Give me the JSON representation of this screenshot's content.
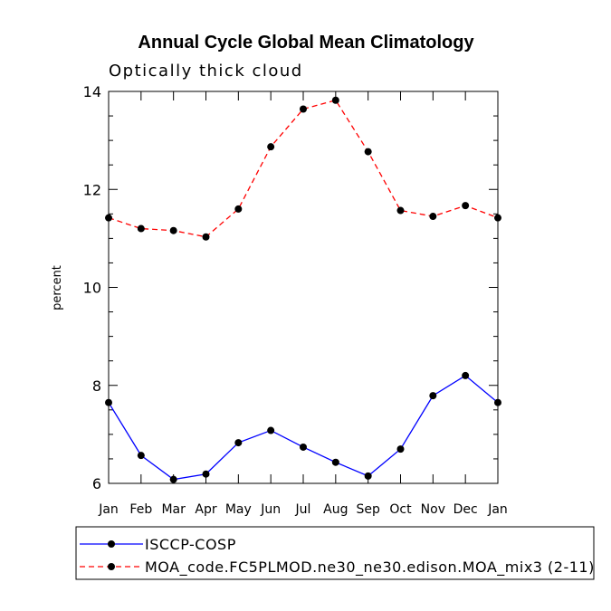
{
  "chart_data": {
    "type": "line",
    "title": "Annual Cycle Global Mean Climatology",
    "subtitle": "Optically thick cloud",
    "ylabel": "percent",
    "xlabel": "",
    "categories": [
      "Jan",
      "Feb",
      "Mar",
      "Apr",
      "May",
      "Jun",
      "Jul",
      "Aug",
      "Sep",
      "Oct",
      "Nov",
      "Dec",
      "Jan"
    ],
    "ylim": [
      6,
      14
    ],
    "yticks": [
      "6",
      "8",
      "10",
      "12",
      "14"
    ],
    "legend_position": "bottom",
    "series": [
      {
        "name": "ISCCP-COSP",
        "color": "#0000ff",
        "dash": "solid",
        "values": [
          7.65,
          6.57,
          6.08,
          6.19,
          6.83,
          7.08,
          6.74,
          6.43,
          6.15,
          6.7,
          7.79,
          8.2,
          7.65
        ]
      },
      {
        "name": "MOA_code.FC5PLMOD.ne30_ne30.edison.MOA_mix3 (2-11)",
        "color": "#ff0000",
        "dash": "dashed",
        "values": [
          11.42,
          11.2,
          11.16,
          11.03,
          11.6,
          12.87,
          13.64,
          13.82,
          12.77,
          11.57,
          11.45,
          11.67,
          11.42
        ]
      }
    ]
  }
}
